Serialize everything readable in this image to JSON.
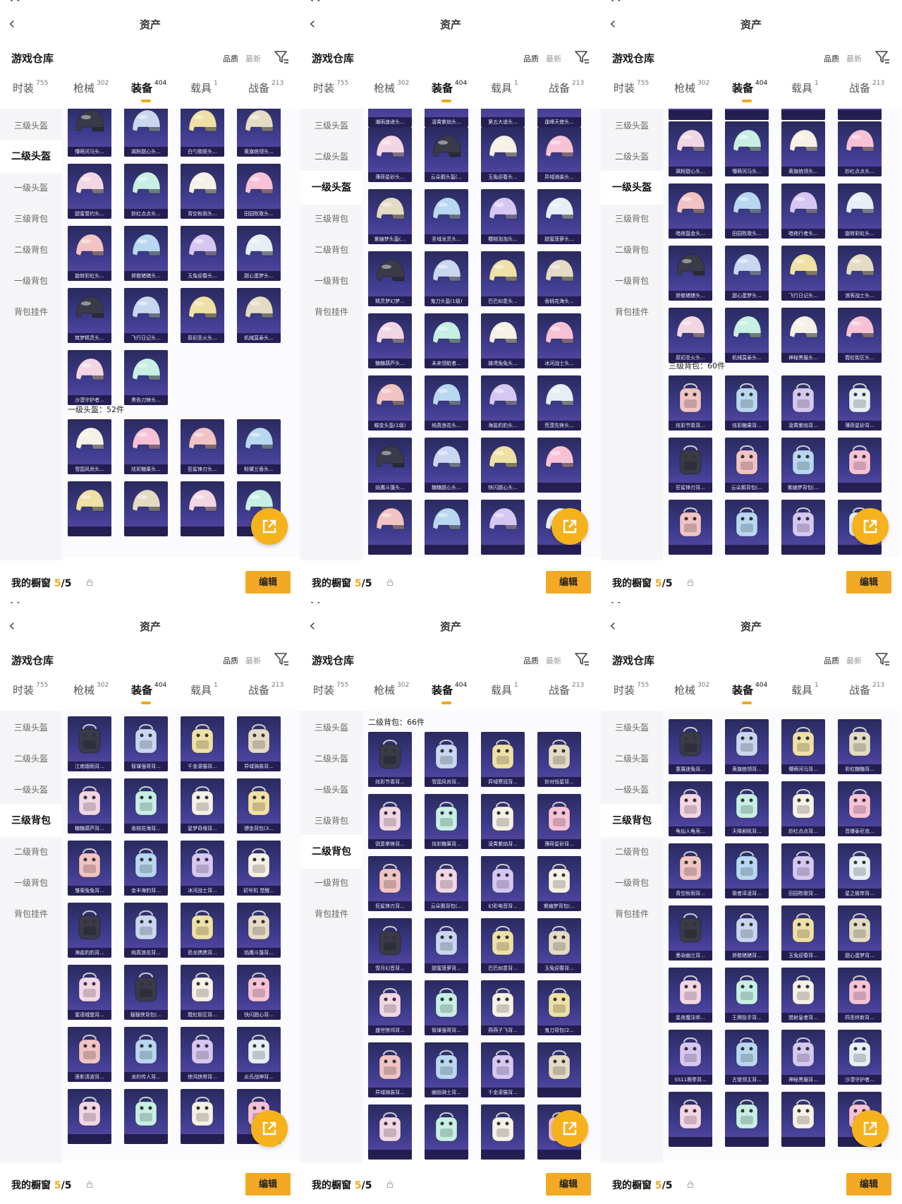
{
  "colors": {
    "accent": "#f4a925",
    "card_top": "#2a2a5e",
    "card_bottom": "#5a4aa8"
  },
  "status_bar": {
    "app": "QQ"
  },
  "header": {
    "title": "资产"
  },
  "warehouse": {
    "title": "游戏仓库",
    "sort_quality": "品质",
    "sort_latest": "最新"
  },
  "tabs": [
    {
      "label": "时装",
      "count": "755"
    },
    {
      "label": "枪械",
      "count": "302"
    },
    {
      "label": "装备",
      "count": "404"
    },
    {
      "label": "载具",
      "count": "1"
    },
    {
      "label": "战备",
      "count": "213"
    }
  ],
  "sidebar": [
    "三级头盔",
    "二级头盔",
    "一级头盔",
    "三级背包",
    "二级背包",
    "一级背包",
    "背包挂件"
  ],
  "footer": {
    "label": "我的橱窗",
    "count": "5",
    "total": "/5",
    "edit": "编辑"
  },
  "panels": [
    {
      "active_side": 1,
      "rows": [
        {
          "y": -10,
          "items": [
            "懵萌河马头...",
            "飒粉甜心头...",
            "白勺歌姬头...",
            "黄旗统领头..."
          ]
        },
        {
          "y": 78,
          "items": [
            "甜蜜誓约头...",
            "妙红点点头...",
            "青空秋雨头...",
            "田园牧歌头..."
          ]
        },
        {
          "y": 166,
          "items": [
            "旋转彩虹头...",
            "娇憨猪猪头...",
            "玉兔迎春头...",
            "甜心蛋梦头..."
          ]
        },
        {
          "y": 254,
          "items": [
            "筑梦精灵头...",
            "飞行日记头...",
            "原初圣火头...",
            "机械莫泰头..."
          ]
        },
        {
          "y": 342,
          "items": [
            "沙漠守护者...",
            "黑色刀锋头..."
          ]
        },
        {
          "y": 440,
          "items": [
            "雪国风尚头...",
            "炫彩糖果头...",
            "狂鲨锋刃头...",
            "粉黛兰香头..."
          ]
        },
        {
          "y": 528,
          "items": [
            "",
            "",
            "",
            ""
          ]
        }
      ],
      "labels": [
        {
          "y": 418,
          "text": "一级头盔：52件"
        }
      ]
    },
    {
      "active_side": 2,
      "rows": [
        {
          "y": -52,
          "items": [
            "潮雨速递头...",
            "凌霄紫焰头...",
            "第五大道头...",
            "逢峰天使头..."
          ]
        },
        {
          "y": 26,
          "items": [
            "薄荷星砂头...",
            "云朵鹅头盔(...",
            "玉兔迎春头...",
            "异域骑装头..."
          ]
        },
        {
          "y": 114,
          "items": [
            "紫幽梦头盔(...",
            "圣域龙灵头...",
            "樱桃泡泡头...",
            "甜蜜菠萝头..."
          ]
        },
        {
          "y": 202,
          "items": [
            "精灵梦幻梦...",
            "鬼刀头盔(1级)",
            "巴巴如意头...",
            "香桃花海头..."
          ]
        },
        {
          "y": 290,
          "items": [
            "糖糖葫芦头...",
            "未来领航者...",
            "雄鸢兔兔头...",
            "冰河战士头..."
          ]
        },
        {
          "y": 378,
          "items": [
            "蝶变头盔(1级)",
            "纯真浪花头...",
            "海盐豹豹头...",
            "荒漠先锋头..."
          ]
        },
        {
          "y": 466,
          "items": [
            "焰鹰斗篷头...",
            "糖糖甜心头...",
            "快闪甜心头...",
            ""
          ]
        },
        {
          "y": 554,
          "items": [
            "",
            "",
            "",
            ""
          ]
        }
      ],
      "labels": []
    },
    {
      "active_side": 2,
      "rows": [
        {
          "y": -62,
          "items": [
            "",
            "",
            "",
            ""
          ]
        },
        {
          "y": 18,
          "items": [
            "飒粉甜心头...",
            "懵萌河马头...",
            "黄旗统领头...",
            "妙红点点头..."
          ]
        },
        {
          "y": 106,
          "items": [
            "暗夜盔金头...",
            "田园牧歌头...",
            "暗夜行者头...",
            "旋转彩虹头..."
          ]
        },
        {
          "y": 194,
          "items": [
            "娇憨猪猪头...",
            "甜心蛋梦头...",
            "飞行日记头...",
            "浪客战士头..."
          ]
        },
        {
          "y": 282,
          "items": [
            "原初圣火头...",
            "机械莫泰头...",
            "神秘黑猫头...",
            "霓虹街区头..."
          ]
        },
        {
          "y": 378,
          "items": [
            "炫彩节奏背...",
            "炫彩糖果背...",
            "凌霄紫焰背...",
            "薄荷星砂背..."
          ]
        },
        {
          "y": 466,
          "items": [
            "狂鲨锋刃背...",
            "云朵鹅背包(...",
            "紫幽梦背包(...",
            ""
          ]
        },
        {
          "y": 554,
          "items": [
            "",
            "",
            "",
            ""
          ]
        }
      ],
      "labels": [
        {
          "y": 356,
          "text": "三级背包：60件"
        }
      ]
    },
    {
      "active_side": 3,
      "rows": [
        {
          "y": 8,
          "items": [
            "江南烟雨背...",
            "智谋强哥背...",
            "千金滚猫背...",
            "异域骑装背..."
          ]
        },
        {
          "y": 96,
          "items": [
            "糖糖葫芦背...",
            "香桃花海背...",
            "星梦奇缘背...",
            "镖金背包(3..."
          ]
        },
        {
          "y": 184,
          "items": [
            "雏菊兔兔背...",
            "金丰海豹背...",
            "冰河战士背...",
            "初号机 觉醒..."
          ]
        },
        {
          "y": 272,
          "items": [
            "海盐豹豹背...",
            "纯真浪花背...",
            "恐龙携携背...",
            "焰鹰斗篷背..."
          ]
        },
        {
          "y": 360,
          "items": [
            "蜜语城堡背...",
            "猫猫侠背包(...",
            "霓虹街区背...",
            "快闪甜心背..."
          ]
        },
        {
          "y": 448,
          "items": [
            "莲影清波背...",
            "龙的传人背...",
            "惊鸿侠骨背...",
            "炎氏战神背..."
          ]
        },
        {
          "y": 536,
          "items": [
            "",
            "",
            "",
            ""
          ]
        }
      ],
      "labels": []
    },
    {
      "active_side": 4,
      "rows": [
        {
          "y": 30,
          "items": [
            "炫彩节奏背...",
            "雪国风尚背...",
            "异域寒冠背...",
            "妙对恒星背..."
          ]
        },
        {
          "y": 118,
          "items": [
            "锐意拳锋背...",
            "炫彩糖果背...",
            "凌霄紫焰背...",
            "薄荷星砂背..."
          ]
        },
        {
          "y": 206,
          "items": [
            "狂鲨锋刃背...",
            "云朵鹅背包(...",
            "幻彩电音背...",
            "紫幽梦背包(..."
          ]
        },
        {
          "y": 294,
          "items": [
            "雪月幻音背...",
            "甜蜜菠萝背...",
            "巴巴如意背...",
            "玉兔迎春背..."
          ]
        },
        {
          "y": 382,
          "items": [
            "盛世惊鸿背...",
            "智谋强哥背...",
            "燕燕子飞背...",
            "鬼刀背包(2..."
          ]
        },
        {
          "y": 470,
          "items": [
            "异域骑装背...",
            "幽焰骑士背...",
            "千金滚猫背...",
            ""
          ]
        },
        {
          "y": 558,
          "items": [
            "",
            "",
            "",
            ""
          ]
        }
      ],
      "labels": [
        {
          "y": 8,
          "text": "二级背包：66件"
        }
      ]
    },
    {
      "active_side": 3,
      "rows": [
        {
          "y": 12,
          "items": [
            "童展迷兔背...",
            "黄旗统领背...",
            "懵萌河马背...",
            "彩虹糖糖背..."
          ]
        },
        {
          "y": 100,
          "items": [
            "龟仙人龟壳...",
            "天降剧吼背...",
            "妙红点点背...",
            "音爆泰尼克..."
          ]
        },
        {
          "y": 188,
          "items": [
            "青空秋雨背...",
            "歌者泽凌背...",
            "田园牧歌背...",
            "星之彼岸背..."
          ]
        },
        {
          "y": 276,
          "items": [
            "墨染幽兰背...",
            "娇憨猪猪背...",
            "玉兔迎春背...",
            "甜心蛋梦背..."
          ]
        },
        {
          "y": 364,
          "items": [
            "星夜魔法师...",
            "王牌投手背...",
            "猎射皇者背...",
            "四圣终新背..."
          ]
        },
        {
          "y": 452,
          "items": [
            "SS11赛季背...",
            "古堡领主背...",
            "神秘黑猫背...",
            "沙漠守护者..."
          ]
        },
        {
          "y": 540,
          "items": [
            "",
            "",
            "",
            ""
          ]
        }
      ],
      "labels": []
    }
  ]
}
